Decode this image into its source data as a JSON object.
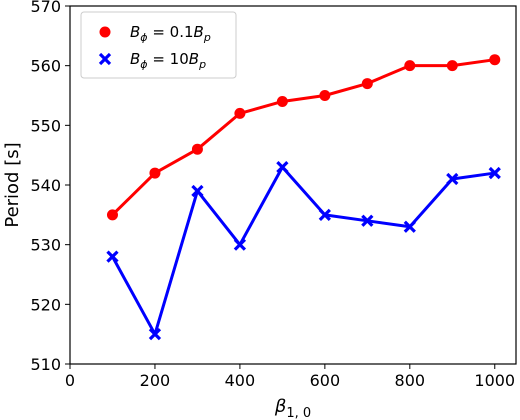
{
  "chart_data": {
    "type": "line",
    "xlabel": "β",
    "xlabel_sub": "1, 0",
    "ylabel": "Period [s]",
    "xlim": [
      0,
      1050
    ],
    "ylim": [
      510,
      570
    ],
    "xticks": [
      0,
      200,
      400,
      600,
      800,
      1000
    ],
    "yticks": [
      510,
      520,
      530,
      540,
      550,
      560,
      570
    ],
    "legend_position": "top-left",
    "series": [
      {
        "name": "B_φ = 0.1B_p",
        "legend_parts": {
          "b1": "B",
          "s1": "ϕ",
          "mid": " = 0.1",
          "b2": "B",
          "s2": "p"
        },
        "color": "#ff0000",
        "marker": "circle",
        "x": [
          100,
          200,
          300,
          400,
          500,
          600,
          700,
          800,
          900,
          1000
        ],
        "y": [
          535,
          542,
          546,
          552,
          554,
          555,
          557,
          560,
          560,
          561
        ]
      },
      {
        "name": "B_φ = 10B_p",
        "legend_parts": {
          "b1": "B",
          "s1": "ϕ",
          "mid": " = 10",
          "b2": "B",
          "s2": "p"
        },
        "color": "#0000ff",
        "marker": "x",
        "x": [
          100,
          200,
          300,
          400,
          500,
          600,
          700,
          800,
          900,
          1000
        ],
        "y": [
          528,
          515,
          539,
          530,
          543,
          535,
          534,
          533,
          541,
          542
        ]
      }
    ]
  }
}
